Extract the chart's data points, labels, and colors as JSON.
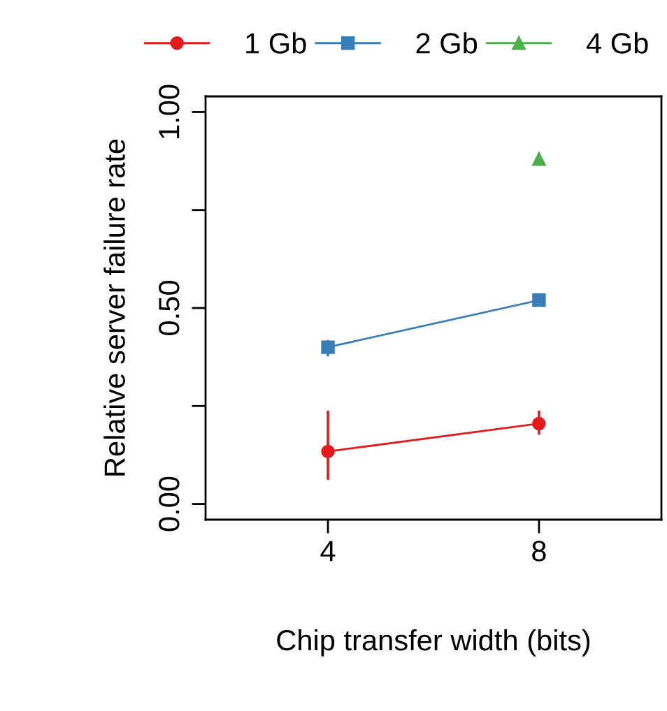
{
  "chart_data": {
    "type": "line",
    "xlabel": "Chip transfer width (bits)",
    "ylabel": "Relative server failure rate",
    "x": [
      4,
      8
    ],
    "series": [
      {
        "name": "1 Gb",
        "color": "#e41a1c",
        "marker": "circle",
        "values": [
          0.134,
          0.205
        ],
        "errors": [
          [
            0.065,
            0.235
          ],
          [
            0.18,
            0.235
          ]
        ]
      },
      {
        "name": "2 Gb",
        "color": "#377eb8",
        "marker": "square",
        "values": [
          0.4,
          0.52
        ],
        "errors": [
          [
            0.38,
            0.415
          ],
          null
        ]
      },
      {
        "name": "4 Gb",
        "color": "#4daf4a",
        "marker": "triangle",
        "values": [
          null,
          0.88
        ]
      }
    ],
    "xlim": [
      1.68,
      10.32
    ],
    "ylim": [
      -0.04,
      1.04
    ],
    "xticks": [
      4,
      8
    ],
    "yticks": [
      {
        "value": 0,
        "label": "0.00"
      },
      {
        "value": 0.25,
        "label": null
      },
      {
        "value": 0.5,
        "label": "0.50"
      },
      {
        "value": 0.75,
        "label": null
      },
      {
        "value": 1,
        "label": "1.00"
      }
    ],
    "grid": false,
    "legend": "top"
  }
}
